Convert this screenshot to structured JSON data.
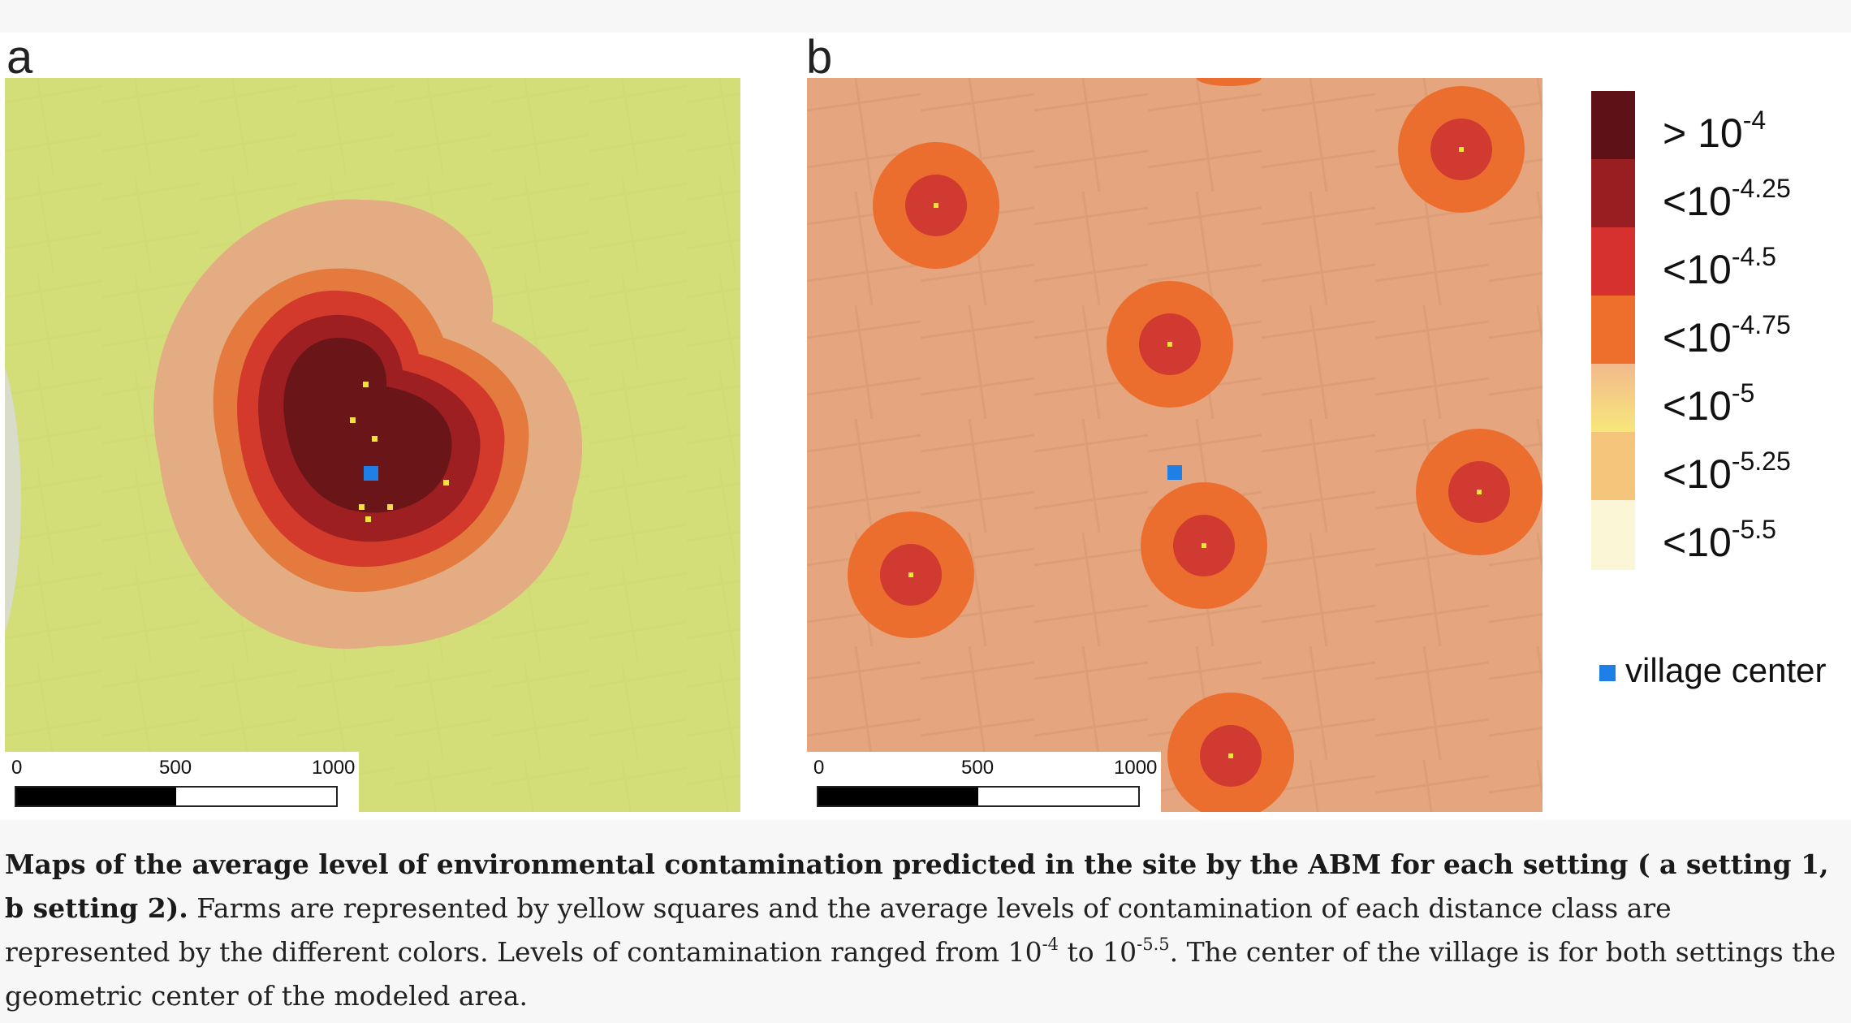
{
  "panels": [
    {
      "label": "a",
      "scale_ticks": [
        "0",
        "500",
        "1000"
      ]
    },
    {
      "label": "b",
      "scale_ticks": [
        "0",
        "500",
        "1000"
      ]
    }
  ],
  "legend": {
    "items": [
      {
        "base": "> 10",
        "exp": "-4",
        "color": "#5e1116"
      },
      {
        "base": "<10",
        "exp": "-4.25",
        "color": "#981e21"
      },
      {
        "base": "<10",
        "exp": "-4.5",
        "color": "#d6312e"
      },
      {
        "base": "<10",
        "exp": "-4.75",
        "color": "#ee6e2c"
      },
      {
        "base": "<10",
        "exp": "-5",
        "color": "gradient"
      },
      {
        "base": "<10",
        "exp": "-5.25",
        "color": "#f6c57c"
      },
      {
        "base": "<10",
        "exp": "-5.5",
        "color": "#fbf6d6"
      }
    ],
    "village_center_label": "village center",
    "village_center_color": "#1e7fe6"
  },
  "caption": {
    "bold": "Maps of the average level of environmental contamination predicted in the site by the ABM for each setting ( a setting 1, b setting 2).",
    "text1": " Farms are represented by yellow squares and the average levels of contamination of each distance class are represented by the different colors. Levels of contamination ranged from 10",
    "exp1": "-4",
    "text2": " to 10",
    "exp2": "-5.5",
    "text3": ". The center of the village is for both settings the geometric center of the modeled area."
  },
  "colors": {
    "farm": "#f2e23a",
    "village_center": "#1e7fe6"
  }
}
